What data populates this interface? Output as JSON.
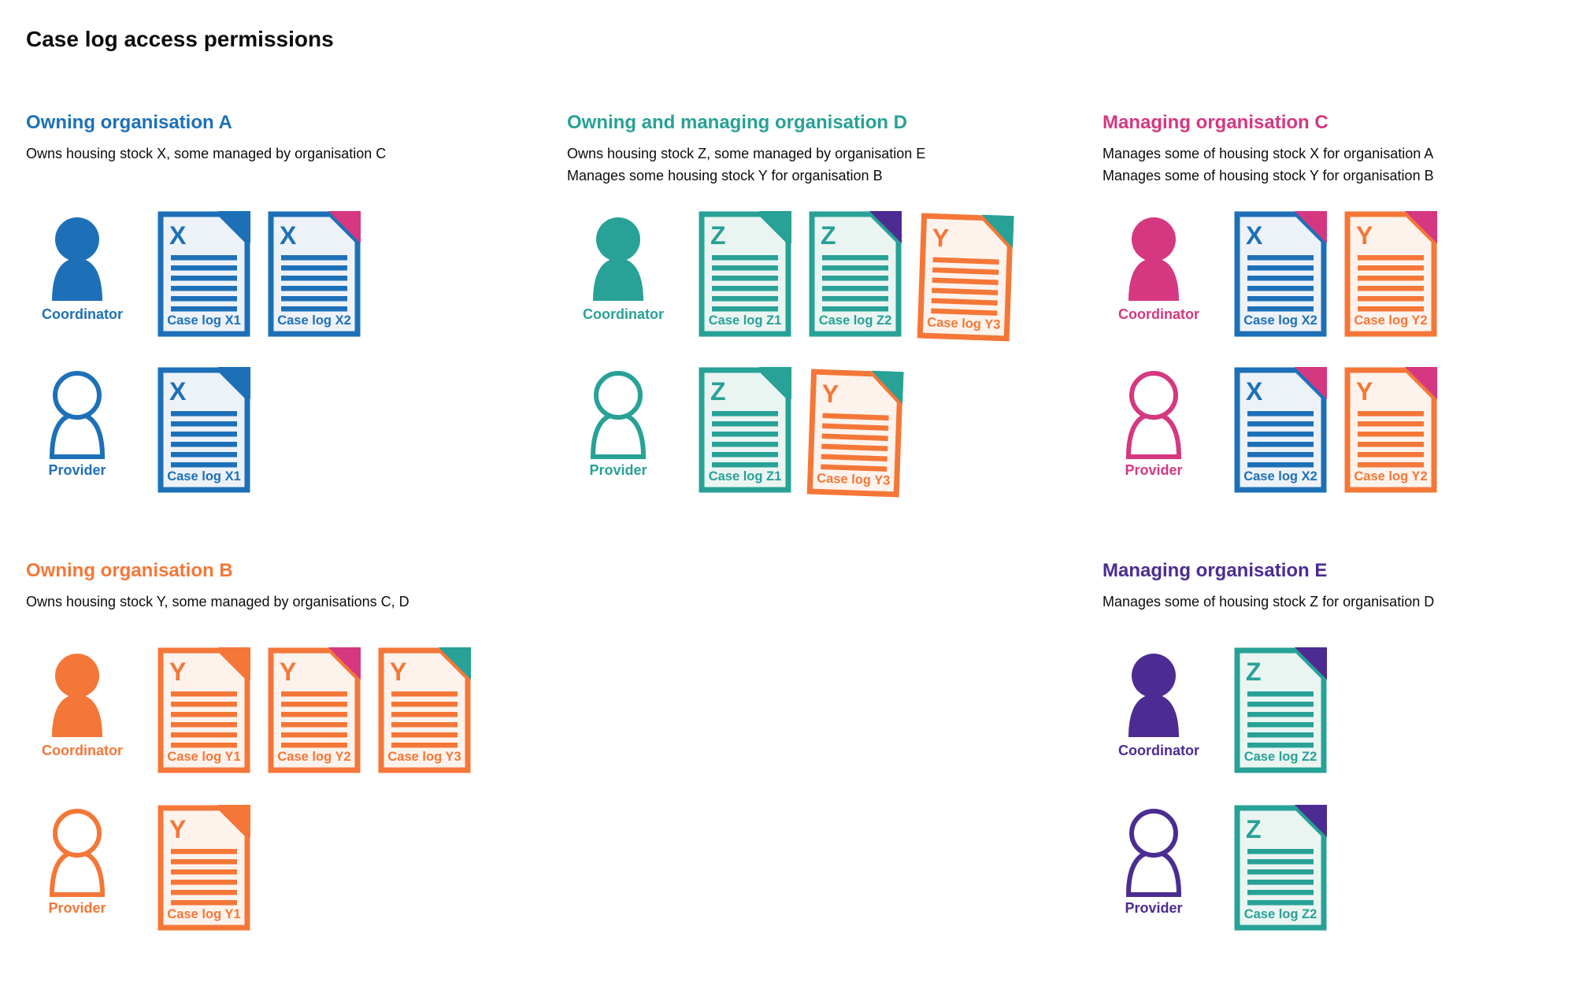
{
  "title": "Case log access permissions",
  "colors": {
    "blue": "#1d70b8",
    "teal": "#28a197",
    "pink": "#d53880",
    "orange": "#f47738",
    "purple": "#4c2c92",
    "text": "#0b0c0c"
  },
  "doc_tints": {
    "blue": "#edf2f9",
    "teal": "#eaf5f2",
    "orange": "#fdf3ec"
  },
  "organisations": [
    {
      "id": "A",
      "name": "Owning organisation A",
      "color": "blue",
      "description": [
        "Owns housing stock X, some managed by organisation C"
      ],
      "layout": {
        "column": 0,
        "band": "top"
      },
      "roles": [
        {
          "label": "Coordinator",
          "icon": "person-filled",
          "docs": [
            {
              "letter": "X",
              "label": "Case log X1",
              "doc_color": "blue",
              "fold_color": "blue"
            },
            {
              "letter": "X",
              "label": "Case log X2",
              "doc_color": "blue",
              "fold_color": "pink"
            }
          ]
        },
        {
          "label": "Provider",
          "icon": "person-outline",
          "docs": [
            {
              "letter": "X",
              "label": "Case log X1",
              "doc_color": "blue",
              "fold_color": "blue"
            }
          ]
        }
      ]
    },
    {
      "id": "D",
      "name": "Owning and managing organisation D",
      "color": "teal",
      "description": [
        "Owns housing stock Z, some managed by organisation E",
        "Manages some housing stock Y for organisation B"
      ],
      "layout": {
        "column": 1,
        "band": "top"
      },
      "roles": [
        {
          "label": "Coordinator",
          "icon": "person-filled",
          "docs": [
            {
              "letter": "Z",
              "label": "Case log Z1",
              "doc_color": "teal",
              "fold_color": "teal"
            },
            {
              "letter": "Z",
              "label": "Case log Z2",
              "doc_color": "teal",
              "fold_color": "purple"
            },
            {
              "letter": "Y",
              "label": "Case log Y3",
              "doc_color": "orange",
              "fold_color": "teal",
              "tilt": true
            }
          ]
        },
        {
          "label": "Provider",
          "icon": "person-outline",
          "docs": [
            {
              "letter": "Z",
              "label": "Case log Z1",
              "doc_color": "teal",
              "fold_color": "teal"
            },
            {
              "letter": "Y",
              "label": "Case log Y3",
              "doc_color": "orange",
              "fold_color": "teal",
              "tilt": true
            }
          ]
        }
      ]
    },
    {
      "id": "C",
      "name": "Managing organisation C",
      "color": "pink",
      "description": [
        "Manages some of housing stock X for organisation A",
        "Manages some of housing stock Y for organisation B"
      ],
      "layout": {
        "column": 2,
        "band": "top"
      },
      "roles": [
        {
          "label": "Coordinator",
          "icon": "person-filled",
          "docs": [
            {
              "letter": "X",
              "label": "Case log X2",
              "doc_color": "blue",
              "fold_color": "pink"
            },
            {
              "letter": "Y",
              "label": "Case log Y2",
              "doc_color": "orange",
              "fold_color": "pink"
            }
          ]
        },
        {
          "label": "Provider",
          "icon": "person-outline",
          "docs": [
            {
              "letter": "X",
              "label": "Case log X2",
              "doc_color": "blue",
              "fold_color": "pink"
            },
            {
              "letter": "Y",
              "label": "Case log Y2",
              "doc_color": "orange",
              "fold_color": "pink"
            }
          ]
        }
      ]
    },
    {
      "id": "B",
      "name": "Owning organisation B",
      "color": "orange",
      "description": [
        "Owns housing stock Y, some managed by organisations C, D"
      ],
      "layout": {
        "column": 0,
        "band": "bottom"
      },
      "roles": [
        {
          "label": "Coordinator",
          "icon": "person-filled",
          "docs": [
            {
              "letter": "Y",
              "label": "Case log Y1",
              "doc_color": "orange",
              "fold_color": "orange"
            },
            {
              "letter": "Y",
              "label": "Case log Y2",
              "doc_color": "orange",
              "fold_color": "pink"
            },
            {
              "letter": "Y",
              "label": "Case log Y3",
              "doc_color": "orange",
              "fold_color": "teal"
            }
          ]
        },
        {
          "label": "Provider",
          "icon": "person-outline",
          "docs": [
            {
              "letter": "Y",
              "label": "Case log Y1",
              "doc_color": "orange",
              "fold_color": "orange"
            }
          ]
        }
      ]
    },
    {
      "id": "E",
      "name": "Managing organisation E",
      "color": "purple",
      "description": [
        "Manages some of housing stock Z for organisation D"
      ],
      "layout": {
        "column": 2,
        "band": "bottom"
      },
      "roles": [
        {
          "label": "Coordinator",
          "icon": "person-filled",
          "docs": [
            {
              "letter": "Z",
              "label": "Case log Z2",
              "doc_color": "teal",
              "fold_color": "purple"
            }
          ]
        },
        {
          "label": "Provider",
          "icon": "person-outline",
          "docs": [
            {
              "letter": "Z",
              "label": "Case log Z2",
              "doc_color": "teal",
              "fold_color": "purple"
            }
          ]
        }
      ]
    }
  ]
}
